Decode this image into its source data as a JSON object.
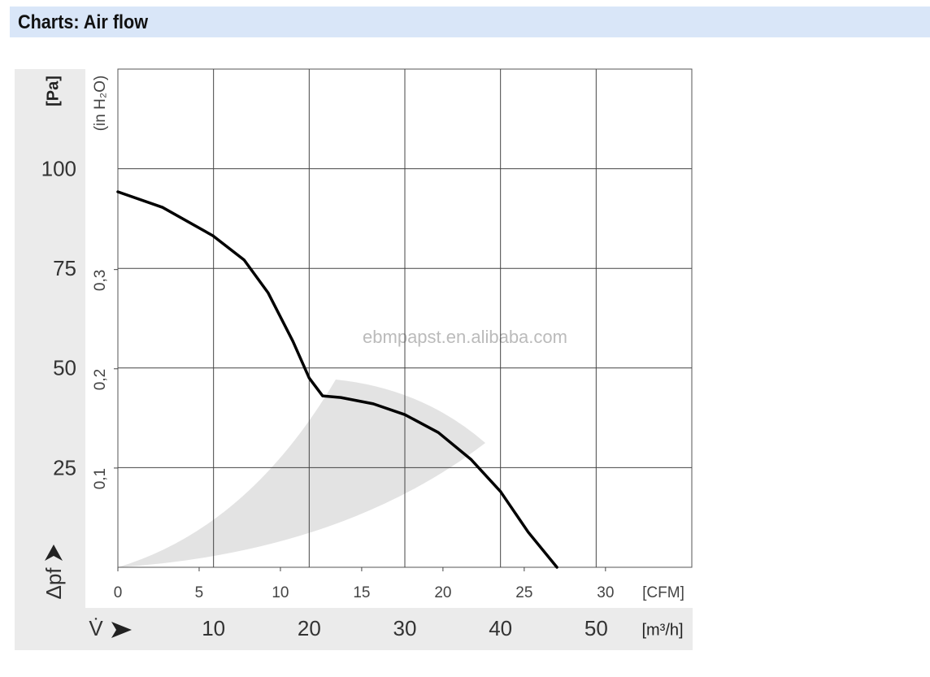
{
  "chart_data": {
    "type": "line",
    "title": "Charts: Air flow",
    "watermark": "ebmpapst.en.alibaba.com",
    "x_symbol": "V̇",
    "x_label": "[m³/h]",
    "y_symbol": "Δpf",
    "y_label": "[Pa]",
    "y2_label": "(in H₂O)",
    "cfm_label": "[CFM]",
    "x": [
      0,
      4.67,
      9.93,
      13.2,
      15.7,
      18.3,
      20,
      21.4,
      23.3,
      26.7,
      30,
      33.5,
      36.9,
      40,
      42.9,
      45.9
    ],
    "series": [
      {
        "color": "#000000",
        "values": [
          94.2,
          90.3,
          83.2,
          77.1,
          68.9,
          56.7,
          47.5,
          43.0,
          42.6,
          41.0,
          38.3,
          33.8,
          27.1,
          19.0,
          8.8,
          0
        ]
      }
    ],
    "xlim": [
      0,
      60
    ],
    "xticks": [
      10,
      20,
      30,
      40,
      50
    ],
    "ylim": [
      0,
      125
    ],
    "yticks": [
      25,
      50,
      75,
      100
    ],
    "y2lim": [
      0,
      0.502
    ],
    "y2ticks": [
      {
        "value": 0.1,
        "label": "0,1"
      },
      {
        "value": 0.2,
        "label": "0,2"
      },
      {
        "value": 0.3,
        "label": "0,3"
      }
    ],
    "cfmlim": [
      0,
      35.31
    ],
    "cfmticks": [
      0,
      5,
      10,
      15,
      20,
      25,
      30
    ],
    "grid": true
  }
}
